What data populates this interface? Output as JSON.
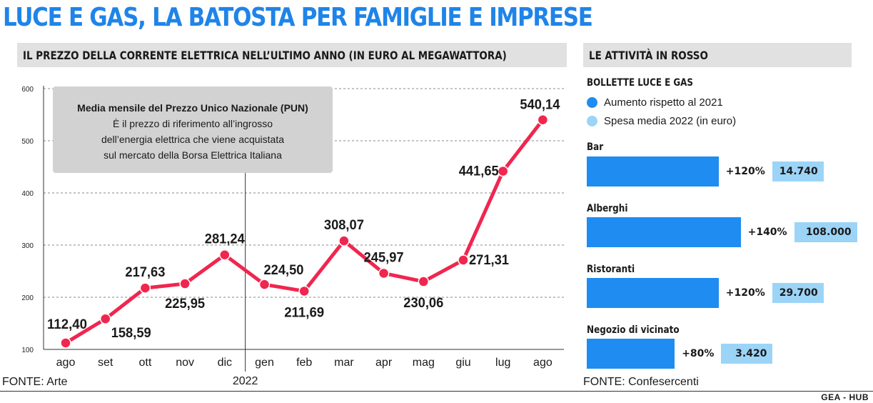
{
  "title": "LUCE E GAS, LA BATOSTA PER FAMIGLIE E IMPRESE",
  "credit": "GEA - HUB",
  "colors": {
    "accent": "#1f84e8",
    "line": "#f0264f",
    "bar": "#1e8cf0",
    "spend": "#9cd4f7",
    "band": "#e1e1e1"
  },
  "left_panel": {
    "header": "IL PREZZO DELLA CORRENTE ELETTRICA NELL’ULTIMO ANNO (IN EURO AL MEGAWATTORA)",
    "source": "FONTE: Arte",
    "note_title": "Media mensile del Prezzo Unico Nazionale (PUN)",
    "note_lines": [
      "È il prezzo di riferimento all’ingrosso",
      "dell’energia elettrica che viene acquistata",
      "sul mercato della Borsa Elettrica Italiana"
    ],
    "year_label": "2022"
  },
  "right_panel": {
    "header": "LE ATTIVITÀ IN ROSSO",
    "legend_title": "BOLLETTE LUCE E GAS",
    "legend": [
      {
        "label": "Aumento rispetto al 2021",
        "color": "#1e8cf0"
      },
      {
        "label": "Spesa media 2022 (in euro)",
        "color": "#9cd4f7"
      }
    ],
    "source": "FONTE: Confesercenti"
  },
  "chart_data": [
    {
      "type": "line",
      "categories": [
        "ago",
        "set",
        "ott",
        "nov",
        "dic",
        "gen",
        "feb",
        "mar",
        "apr",
        "mag",
        "giu",
        "lug",
        "ago"
      ],
      "values": [
        112.4,
        158.59,
        217.63,
        225.95,
        281.24,
        224.5,
        211.69,
        308.07,
        245.97,
        230.06,
        271.31,
        441.65,
        540.14
      ],
      "labels": [
        "112,40",
        "158,59",
        "217,63",
        "225,95",
        "281,24",
        "224,50",
        "211,69",
        "308,07",
        "245,97",
        "230,06",
        "271,31",
        "441,65",
        "540,14"
      ],
      "yticks": [
        100,
        200,
        300,
        400,
        500,
        600
      ],
      "ylim": [
        100,
        600
      ],
      "grid": true
    },
    {
      "type": "bar",
      "categories": [
        "Bar",
        "Alberghi",
        "Ristoranti",
        "Negozio  di vicinato"
      ],
      "series": [
        {
          "name": "Aumento rispetto al 2021",
          "values": [
            120,
            140,
            120,
            80
          ],
          "labels": [
            "+120%",
            "+140%",
            "+120%",
            "+80%"
          ]
        },
        {
          "name": "Spesa media 2022 (in euro)",
          "values": [
            14740,
            108000,
            29700,
            3420
          ],
          "labels": [
            "14.740",
            "108.000",
            "29.700",
            "3.420"
          ]
        }
      ]
    }
  ]
}
